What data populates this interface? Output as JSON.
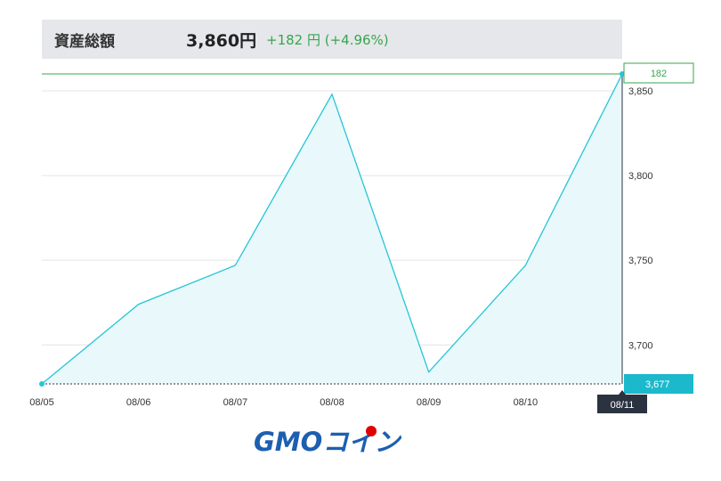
{
  "header": {
    "label": "資産総額",
    "total": "3,860円",
    "change": "+182 円 (+4.96%)"
  },
  "logo": {
    "text": "GMOコイン"
  },
  "colors": {
    "line": "#25c5d6",
    "fill": "#e9f8fb",
    "positive": "#37a64d",
    "base_tag": "#1cb9cc",
    "date_tag": "#2b3340"
  },
  "chart_data": {
    "type": "area",
    "title": "",
    "xlabel": "",
    "ylabel": "",
    "categories": [
      "08/05",
      "08/06",
      "08/07",
      "08/08",
      "08/09",
      "08/10",
      "08/11"
    ],
    "series": [
      {
        "values": [
          3677,
          3724,
          3747,
          3848,
          3684,
          3747,
          3860
        ]
      }
    ],
    "ylim": [
      3677,
      3860
    ],
    "yticks": [
      3700,
      3750,
      3800,
      3850
    ],
    "ytick_labels": [
      "3,700",
      "3,750",
      "3,800",
      "3,850"
    ],
    "grid": true,
    "base_value_label": "3,677",
    "last_change_label": "182",
    "selected_date_label": "08/11"
  }
}
